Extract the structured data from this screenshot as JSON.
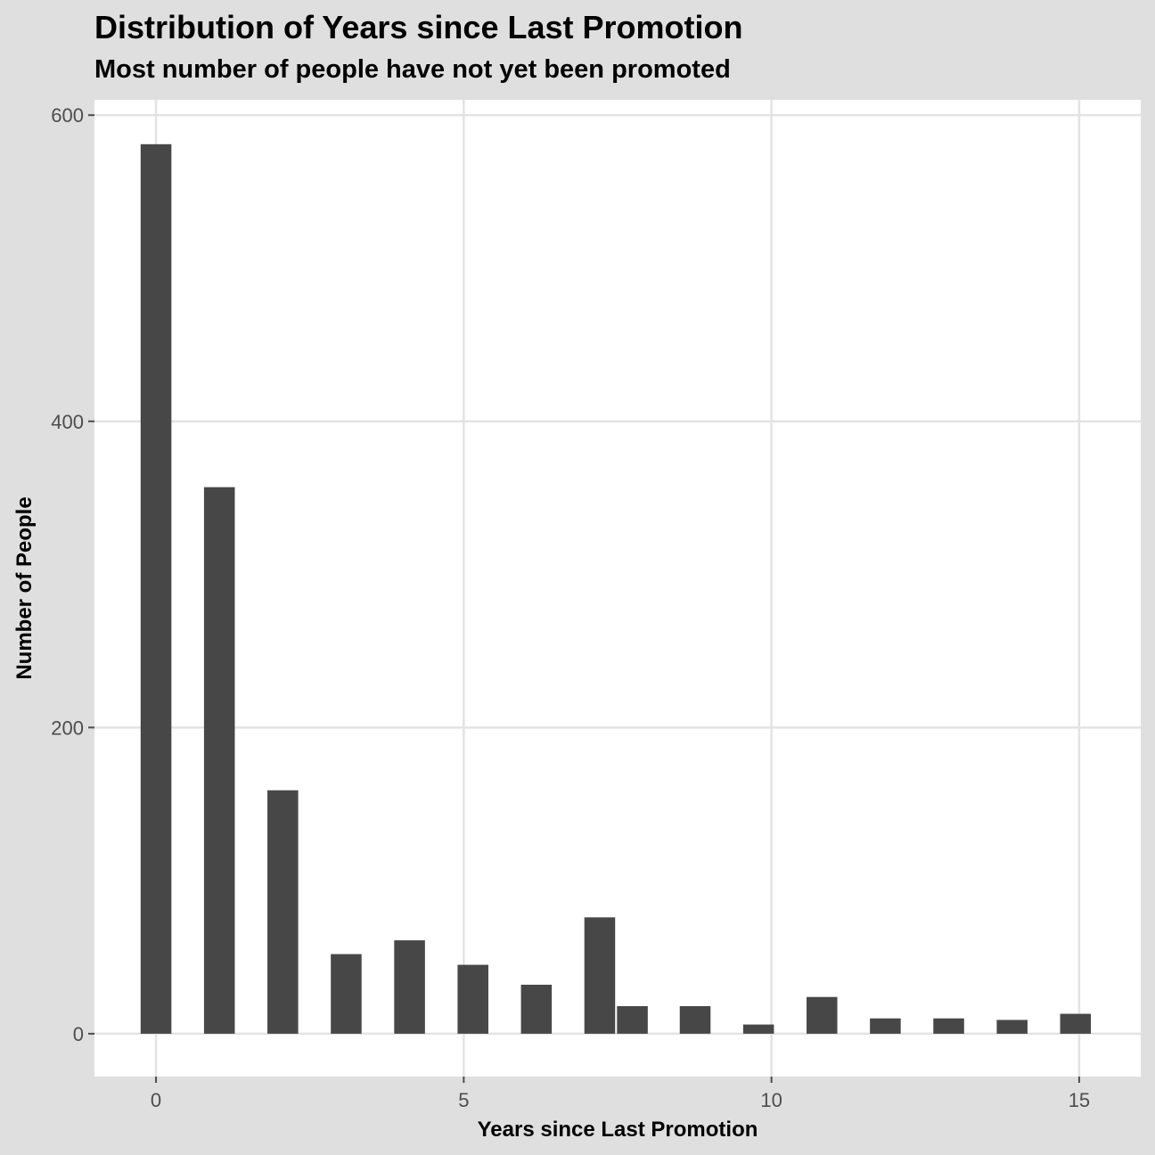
{
  "chart_data": {
    "type": "bar",
    "title": "Distribution of Years since Last Promotion",
    "subtitle": "Most number of people have not yet been promoted",
    "xlabel": "Years since Last Promotion",
    "ylabel": "Number of People",
    "x_ticks": [
      0,
      5,
      10,
      15
    ],
    "y_ticks": [
      0,
      200,
      400,
      600
    ],
    "xlim": [
      -1,
      16
    ],
    "ylim": [
      -28,
      610
    ],
    "bar_width": 0.5,
    "grid": true,
    "colors": {
      "bar": "#474747",
      "panel": "#ffffff",
      "background": "#dfdfdf",
      "grid": "#e3e3e3"
    },
    "bins": [
      {
        "x": 0.0,
        "count": 581
      },
      {
        "x": 1.03,
        "count": 357
      },
      {
        "x": 2.06,
        "count": 159
      },
      {
        "x": 3.09,
        "count": 52
      },
      {
        "x": 4.12,
        "count": 61
      },
      {
        "x": 5.15,
        "count": 45
      },
      {
        "x": 6.18,
        "count": 32
      },
      {
        "x": 7.21,
        "count": 76
      },
      {
        "x": 7.74,
        "count": 18
      },
      {
        "x": 8.76,
        "count": 18
      },
      {
        "x": 9.79,
        "count": 6
      },
      {
        "x": 10.82,
        "count": 24
      },
      {
        "x": 11.85,
        "count": 10
      },
      {
        "x": 12.88,
        "count": 10
      },
      {
        "x": 13.91,
        "count": 9
      },
      {
        "x": 14.94,
        "count": 13
      }
    ]
  }
}
